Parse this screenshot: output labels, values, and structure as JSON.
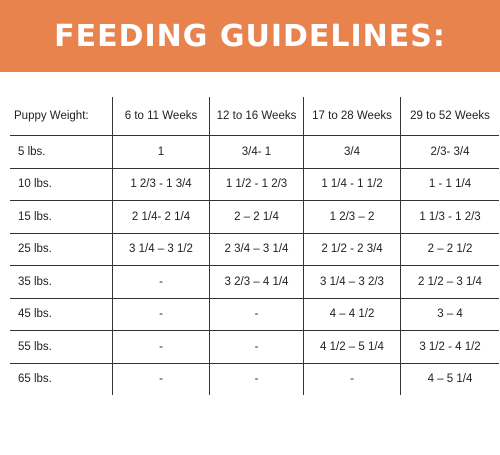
{
  "banner": {
    "title": "FEEDING GUIDELINES:",
    "color": "#E8834E"
  },
  "table": {
    "headers": [
      "Puppy Weight:",
      "6 to 11 Weeks",
      "12 to 16 Weeks",
      "17 to 28 Weeks",
      "29 to 52 Weeks"
    ],
    "rows": [
      [
        "5 lbs.",
        "1",
        "3/4- 1",
        "3/4",
        "2/3- 3/4"
      ],
      [
        "10 lbs.",
        "1 2/3 - 1 3/4",
        "1 1/2 - 1 2/3",
        "1 1/4 - 1 1/2",
        "1 - 1 1/4"
      ],
      [
        "15 lbs.",
        "2 1/4- 2 1/4",
        "2 – 2 1/4",
        "1 2/3 – 2",
        "1 1/3 - 1 2/3"
      ],
      [
        "25 lbs.",
        "3 1/4 – 3 1/2",
        "2 3/4 – 3 1/4",
        "2 1/2 - 2 3/4",
        "2 – 2 1/2"
      ],
      [
        "35 lbs.",
        "-",
        "3 2/3 – 4 1/4",
        "3 1/4 – 3 2/3",
        "2 1/2 – 3 1/4"
      ],
      [
        "45 lbs.",
        "-",
        "-",
        "4 – 4 1/2",
        "3 – 4"
      ],
      [
        "55 lbs.",
        "-",
        "-",
        "4 1/2 – 5 1/4",
        "3 1/2 - 4 1/2"
      ],
      [
        "65 lbs.",
        "-",
        "-",
        "-",
        "4 – 5 1/4"
      ]
    ]
  }
}
